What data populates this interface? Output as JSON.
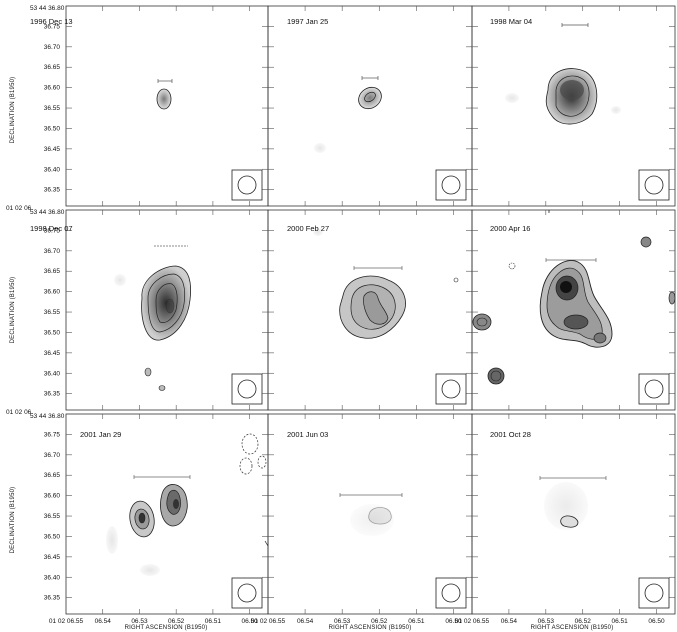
{
  "figure": {
    "ytick_labels": [
      "36.75",
      "36.70",
      "36.65",
      "36.60",
      "36.55",
      "36.50",
      "36.45",
      "36.40",
      "36.35"
    ],
    "ytop_label": "53 44 36.80",
    "ra_top_label": "01 02 06.",
    "xtick_labels": [
      "06.54",
      "06.53",
      "06.52",
      "06.51",
      "06.50"
    ],
    "xtick_edge_label": "01 02 06.55",
    "ylabel": "DECLINATION (B1950)",
    "xlabel": "RIGHT ASCENSION (B1950)"
  },
  "panels": [
    {
      "date": "1996 Dec 13"
    },
    {
      "date": "1997 Jan 25"
    },
    {
      "date": "1998 Mar 04"
    },
    {
      "date": "1998 Dec 07"
    },
    {
      "date": "2000 Feb 27"
    },
    {
      "date": "2000 Apr 16"
    },
    {
      "date": "2001 Jan 29"
    },
    {
      "date": "2001 Jun 03"
    },
    {
      "date": "2001 Oct 28"
    }
  ]
}
